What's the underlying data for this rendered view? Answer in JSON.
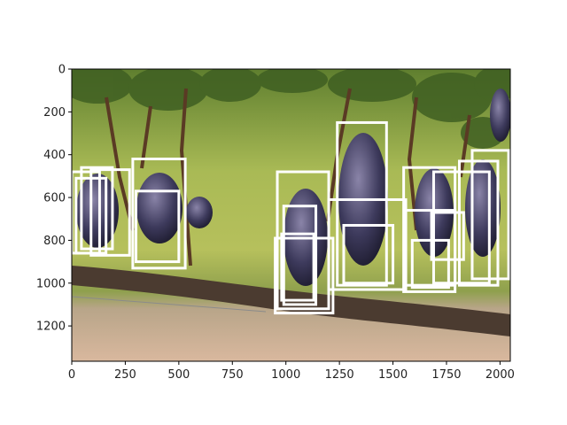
{
  "chart_data": {
    "type": "image_with_bounding_boxes",
    "title": "",
    "xlabel": "",
    "ylabel": "",
    "image": {
      "subject": "grape-clusters-on-vine",
      "width": 2048,
      "height": 1365
    },
    "xlim": [
      0,
      2048
    ],
    "ylim": [
      1365,
      0
    ],
    "x_ticks": [
      0,
      250,
      500,
      750,
      1000,
      1250,
      1500,
      1750,
      2000
    ],
    "y_ticks": [
      0,
      200,
      400,
      600,
      800,
      1000,
      1200
    ],
    "box_color": "#ffffff",
    "boxes": [
      {
        "x1": 0,
        "y1": 480,
        "x2": 130,
        "y2": 860
      },
      {
        "x1": 45,
        "y1": 460,
        "x2": 190,
        "y2": 840
      },
      {
        "x1": 20,
        "y1": 510,
        "x2": 160,
        "y2": 860
      },
      {
        "x1": 90,
        "y1": 470,
        "x2": 270,
        "y2": 870
      },
      {
        "x1": 285,
        "y1": 420,
        "x2": 530,
        "y2": 930
      },
      {
        "x1": 300,
        "y1": 570,
        "x2": 500,
        "y2": 900
      },
      {
        "x1": 960,
        "y1": 480,
        "x2": 1200,
        "y2": 1120
      },
      {
        "x1": 990,
        "y1": 640,
        "x2": 1140,
        "y2": 1100
      },
      {
        "x1": 950,
        "y1": 790,
        "x2": 1220,
        "y2": 1140
      },
      {
        "x1": 980,
        "y1": 770,
        "x2": 1130,
        "y2": 1080
      },
      {
        "x1": 1240,
        "y1": 250,
        "x2": 1470,
        "y2": 1010
      },
      {
        "x1": 1200,
        "y1": 610,
        "x2": 1560,
        "y2": 1030
      },
      {
        "x1": 1270,
        "y1": 730,
        "x2": 1500,
        "y2": 1000
      },
      {
        "x1": 1550,
        "y1": 460,
        "x2": 1790,
        "y2": 1040
      },
      {
        "x1": 1560,
        "y1": 660,
        "x2": 1790,
        "y2": 1010
      },
      {
        "x1": 1690,
        "y1": 480,
        "x2": 1950,
        "y2": 1000
      },
      {
        "x1": 1680,
        "y1": 670,
        "x2": 1830,
        "y2": 890
      },
      {
        "x1": 1870,
        "y1": 380,
        "x2": 2040,
        "y2": 980
      },
      {
        "x1": 1810,
        "y1": 430,
        "x2": 1990,
        "y2": 1010
      },
      {
        "x1": 1590,
        "y1": 800,
        "x2": 1760,
        "y2": 1020
      }
    ]
  }
}
